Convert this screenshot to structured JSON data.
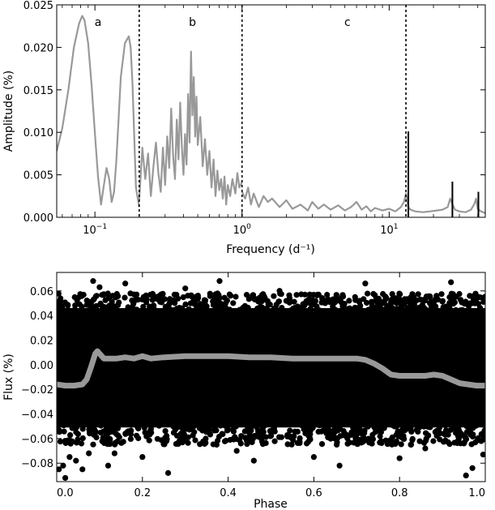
{
  "chart_data": [
    {
      "type": "line",
      "xlabel": "Frequency (d⁻¹)",
      "ylabel": "Amplitude (%)",
      "xscale": "log",
      "xlim": [
        0.055,
        45
      ],
      "ylim": [
        0,
        0.025
      ],
      "xticks": [
        0.1,
        1,
        10
      ],
      "xtick_labels": [
        {
          "base": "10",
          "exp": "−1"
        },
        {
          "base": "10",
          "exp": "0"
        },
        {
          "base": "10",
          "exp": "1"
        }
      ],
      "yticks": [
        0.0,
        0.005,
        0.01,
        0.015,
        0.02,
        0.025
      ],
      "ytick_labels": [
        "0.000",
        "0.005",
        "0.010",
        "0.015",
        "0.020",
        "0.025"
      ],
      "grid": false,
      "colors": {
        "spectrum": "#999999",
        "peaks": "#000000",
        "dividers": "#000000"
      },
      "region_dividers": [
        0.2,
        1.0,
        13.0
      ],
      "regions": [
        {
          "label": "a",
          "x": 0.105
        },
        {
          "label": "b",
          "x": 0.46
        },
        {
          "label": "c",
          "x": 5.2
        }
      ],
      "series": [
        {
          "style": "gray-line",
          "x": [
            0.055,
            0.06,
            0.066,
            0.072,
            0.078,
            0.082,
            0.085,
            0.09,
            0.095,
            0.1,
            0.105,
            0.11,
            0.116,
            0.12,
            0.125,
            0.13,
            0.135,
            0.14,
            0.145,
            0.15,
            0.16,
            0.17,
            0.175,
            0.18,
            0.185,
            0.19,
            0.2
          ],
          "y": [
            0.0078,
            0.0105,
            0.015,
            0.02,
            0.0228,
            0.0237,
            0.0232,
            0.0205,
            0.0155,
            0.0098,
            0.0048,
            0.0015,
            0.0042,
            0.0058,
            0.0045,
            0.0018,
            0.003,
            0.0068,
            0.0118,
            0.0165,
            0.0205,
            0.0213,
            0.02,
            0.0158,
            0.0095,
            0.0035,
            0.0012
          ]
        },
        {
          "style": "gray-line",
          "x": [
            0.2,
            0.21,
            0.22,
            0.23,
            0.24,
            0.25,
            0.26,
            0.27,
            0.28,
            0.29,
            0.3,
            0.31,
            0.32,
            0.33,
            0.34,
            0.35,
            0.36,
            0.37,
            0.38,
            0.39,
            0.4,
            0.41,
            0.42,
            0.43,
            0.44,
            0.45,
            0.46,
            0.47,
            0.48,
            0.49,
            0.5,
            0.52,
            0.54,
            0.56,
            0.58,
            0.6,
            0.62,
            0.64,
            0.66,
            0.68,
            0.7,
            0.72,
            0.74,
            0.76,
            0.78,
            0.8,
            0.83,
            0.86,
            0.9,
            0.93,
            0.96,
            1.0
          ],
          "y": [
            0.002,
            0.0082,
            0.0045,
            0.0075,
            0.0025,
            0.006,
            0.0088,
            0.0052,
            0.003,
            0.0082,
            0.0038,
            0.0095,
            0.0058,
            0.0128,
            0.0072,
            0.0045,
            0.0115,
            0.0068,
            0.0135,
            0.0082,
            0.005,
            0.0098,
            0.0062,
            0.0145,
            0.0088,
            0.0195,
            0.012,
            0.0165,
            0.0095,
            0.0142,
            0.0085,
            0.0118,
            0.006,
            0.0092,
            0.005,
            0.0078,
            0.0035,
            0.0068,
            0.0025,
            0.0055,
            0.0032,
            0.0045,
            0.0022,
            0.0048,
            0.0015,
            0.0038,
            0.0025,
            0.0045,
            0.0028,
            0.0052,
            0.0035,
            0.0042
          ]
        },
        {
          "style": "gray-line",
          "x": [
            1.0,
            1.05,
            1.1,
            1.15,
            1.2,
            1.3,
            1.4,
            1.5,
            1.6,
            1.8,
            2.0,
            2.2,
            2.5,
            2.8,
            3.0,
            3.3,
            3.6,
            4.0,
            4.5,
            5.0,
            5.5,
            6.0,
            6.5,
            7.0,
            7.5,
            8.0,
            9.0,
            10.0,
            11.0,
            12.0,
            12.6,
            13.0,
            13.5,
            14.0,
            15.0,
            17.0,
            19.0,
            21.0,
            23.0,
            25.0,
            26.0,
            27.0,
            28.0,
            30.0,
            33.0,
            36.0,
            38.0,
            39.0,
            40.0,
            42.0,
            45.0
          ],
          "y": [
            0.003,
            0.0022,
            0.0035,
            0.0015,
            0.0028,
            0.0012,
            0.0025,
            0.0018,
            0.0022,
            0.0012,
            0.002,
            0.001,
            0.0015,
            0.0008,
            0.0018,
            0.001,
            0.0015,
            0.0009,
            0.0014,
            0.0008,
            0.0012,
            0.0018,
            0.0009,
            0.0013,
            0.0007,
            0.0011,
            0.0008,
            0.001,
            0.0007,
            0.0012,
            0.0018,
            0.0028,
            0.0012,
            0.0009,
            0.0007,
            0.0006,
            0.0007,
            0.0008,
            0.0009,
            0.0012,
            0.0022,
            0.0015,
            0.0009,
            0.0007,
            0.0006,
            0.0009,
            0.0016,
            0.0022,
            0.001,
            0.0007,
            0.0005
          ]
        }
      ],
      "peaks": [
        {
          "x": 13.5,
          "y": 0.0101
        },
        {
          "x": 26.9,
          "y": 0.0042
        },
        {
          "x": 40.4,
          "y": 0.003
        }
      ]
    },
    {
      "type": "scatter",
      "xlabel": "Phase",
      "ylabel": "Flux (%)",
      "xlim": [
        0,
        1
      ],
      "ylim": [
        -0.095,
        0.075
      ],
      "xticks": [
        0.0,
        0.2,
        0.4,
        0.6,
        0.8,
        1.0
      ],
      "xtick_labels": [
        "0.0",
        "0.2",
        "0.4",
        "0.6",
        "0.8",
        "1.0"
      ],
      "yticks": [
        -0.08,
        -0.06,
        -0.04,
        -0.02,
        0.0,
        0.02,
        0.04,
        0.06
      ],
      "ytick_labels": [
        "−0.08",
        "−0.06",
        "−0.04",
        "−0.02",
        "0.00",
        "0.02",
        "0.04",
        "0.06"
      ],
      "grid": false,
      "colors": {
        "points": "#000000",
        "mean_curve": "#999999"
      },
      "points_description_values": {
        "band_lower": -0.055,
        "band_upper": 0.05
      },
      "outliers": [
        {
          "x": 0.005,
          "y": -0.085
        },
        {
          "x": 0.015,
          "y": -0.082
        },
        {
          "x": 0.02,
          "y": -0.092
        },
        {
          "x": 0.03,
          "y": -0.075
        },
        {
          "x": 0.045,
          "y": -0.078
        },
        {
          "x": 0.06,
          "y": -0.085
        },
        {
          "x": 0.075,
          "y": -0.072
        },
        {
          "x": 0.085,
          "y": 0.068
        },
        {
          "x": 0.1,
          "y": 0.063
        },
        {
          "x": 0.12,
          "y": -0.082
        },
        {
          "x": 0.135,
          "y": -0.072
        },
        {
          "x": 0.16,
          "y": 0.066
        },
        {
          "x": 0.2,
          "y": -0.075
        },
        {
          "x": 0.26,
          "y": -0.088
        },
        {
          "x": 0.3,
          "y": 0.062
        },
        {
          "x": 0.38,
          "y": 0.068
        },
        {
          "x": 0.42,
          "y": -0.07
        },
        {
          "x": 0.46,
          "y": -0.078
        },
        {
          "x": 0.52,
          "y": 0.06
        },
        {
          "x": 0.6,
          "y": -0.075
        },
        {
          "x": 0.66,
          "y": -0.082
        },
        {
          "x": 0.72,
          "y": 0.066
        },
        {
          "x": 0.8,
          "y": -0.076
        },
        {
          "x": 0.86,
          "y": -0.068
        },
        {
          "x": 0.92,
          "y": 0.067
        },
        {
          "x": 0.955,
          "y": -0.09
        },
        {
          "x": 0.97,
          "y": -0.084
        },
        {
          "x": 0.985,
          "y": 0.055
        },
        {
          "x": 0.995,
          "y": -0.073
        },
        {
          "x": 0.965,
          "y": 0.05
        }
      ],
      "mean_curve": {
        "x": [
          0.0,
          0.02,
          0.04,
          0.06,
          0.07,
          0.08,
          0.09,
          0.095,
          0.1,
          0.11,
          0.12,
          0.14,
          0.16,
          0.18,
          0.2,
          0.22,
          0.25,
          0.3,
          0.35,
          0.4,
          0.45,
          0.5,
          0.55,
          0.6,
          0.65,
          0.7,
          0.72,
          0.74,
          0.76,
          0.78,
          0.8,
          0.82,
          0.84,
          0.86,
          0.88,
          0.9,
          0.92,
          0.94,
          0.96,
          0.98,
          1.0
        ],
        "y": [
          -0.016,
          -0.017,
          -0.017,
          -0.016,
          -0.012,
          -0.002,
          0.009,
          0.011,
          0.009,
          0.005,
          0.005,
          0.005,
          0.006,
          0.005,
          0.007,
          0.005,
          0.006,
          0.007,
          0.007,
          0.007,
          0.006,
          0.006,
          0.005,
          0.005,
          0.005,
          0.005,
          0.004,
          0.001,
          -0.003,
          -0.008,
          -0.009,
          -0.009,
          -0.009,
          -0.009,
          -0.008,
          -0.009,
          -0.012,
          -0.015,
          -0.016,
          -0.017,
          -0.017
        ]
      }
    }
  ]
}
